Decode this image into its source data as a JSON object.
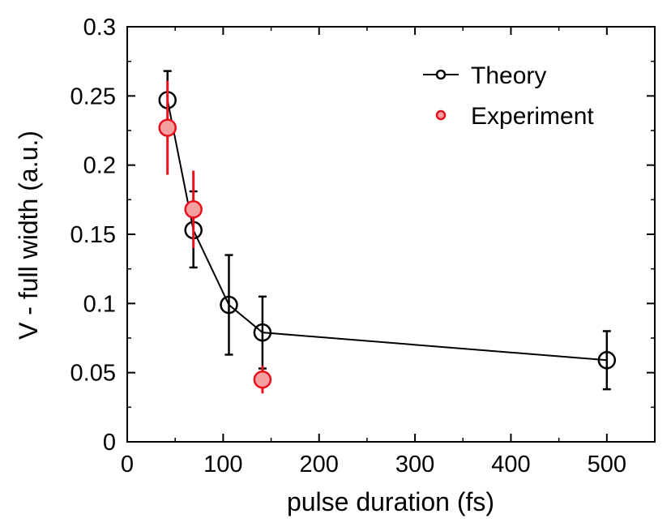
{
  "chart_data": {
    "type": "scatter",
    "title": "",
    "xlabel": "pulse duration (fs)",
    "ylabel": "V - full width (a.u.)",
    "xlim": [
      0,
      550
    ],
    "ylim": [
      0,
      0.3
    ],
    "xticks": [
      0,
      100,
      200,
      300,
      400,
      500
    ],
    "yticks": [
      0,
      0.05,
      0.1,
      0.15,
      0.2,
      0.25,
      0.3
    ],
    "xtick_labels": [
      "0",
      "100",
      "200",
      "300",
      "400",
      "500"
    ],
    "ytick_labels": [
      "0",
      "0.05",
      "0.1",
      "0.15",
      "0.2",
      "0.25",
      "0.3"
    ],
    "grid": false,
    "legend_position": "top-right",
    "series": [
      {
        "name": "Theory",
        "color": "#000000",
        "marker": "open-circle",
        "line": true,
        "x": [
          42,
          69,
          106,
          141,
          500
        ],
        "y": [
          0.247,
          0.153,
          0.099,
          0.079,
          0.059
        ],
        "err_low": [
          0.021,
          0.027,
          0.036,
          0.026,
          0.021
        ],
        "err_high": [
          0.021,
          0.028,
          0.036,
          0.026,
          0.021
        ]
      },
      {
        "name": "Experiment",
        "color": "#e8101a",
        "fill": "#f4a0a0",
        "marker": "filled-circle",
        "line": false,
        "x": [
          42,
          69,
          141
        ],
        "y": [
          0.227,
          0.168,
          0.045
        ],
        "err_low": [
          0.034,
          0.028,
          0.01
        ],
        "err_high": [
          0.034,
          0.028,
          0.01
        ]
      }
    ]
  }
}
